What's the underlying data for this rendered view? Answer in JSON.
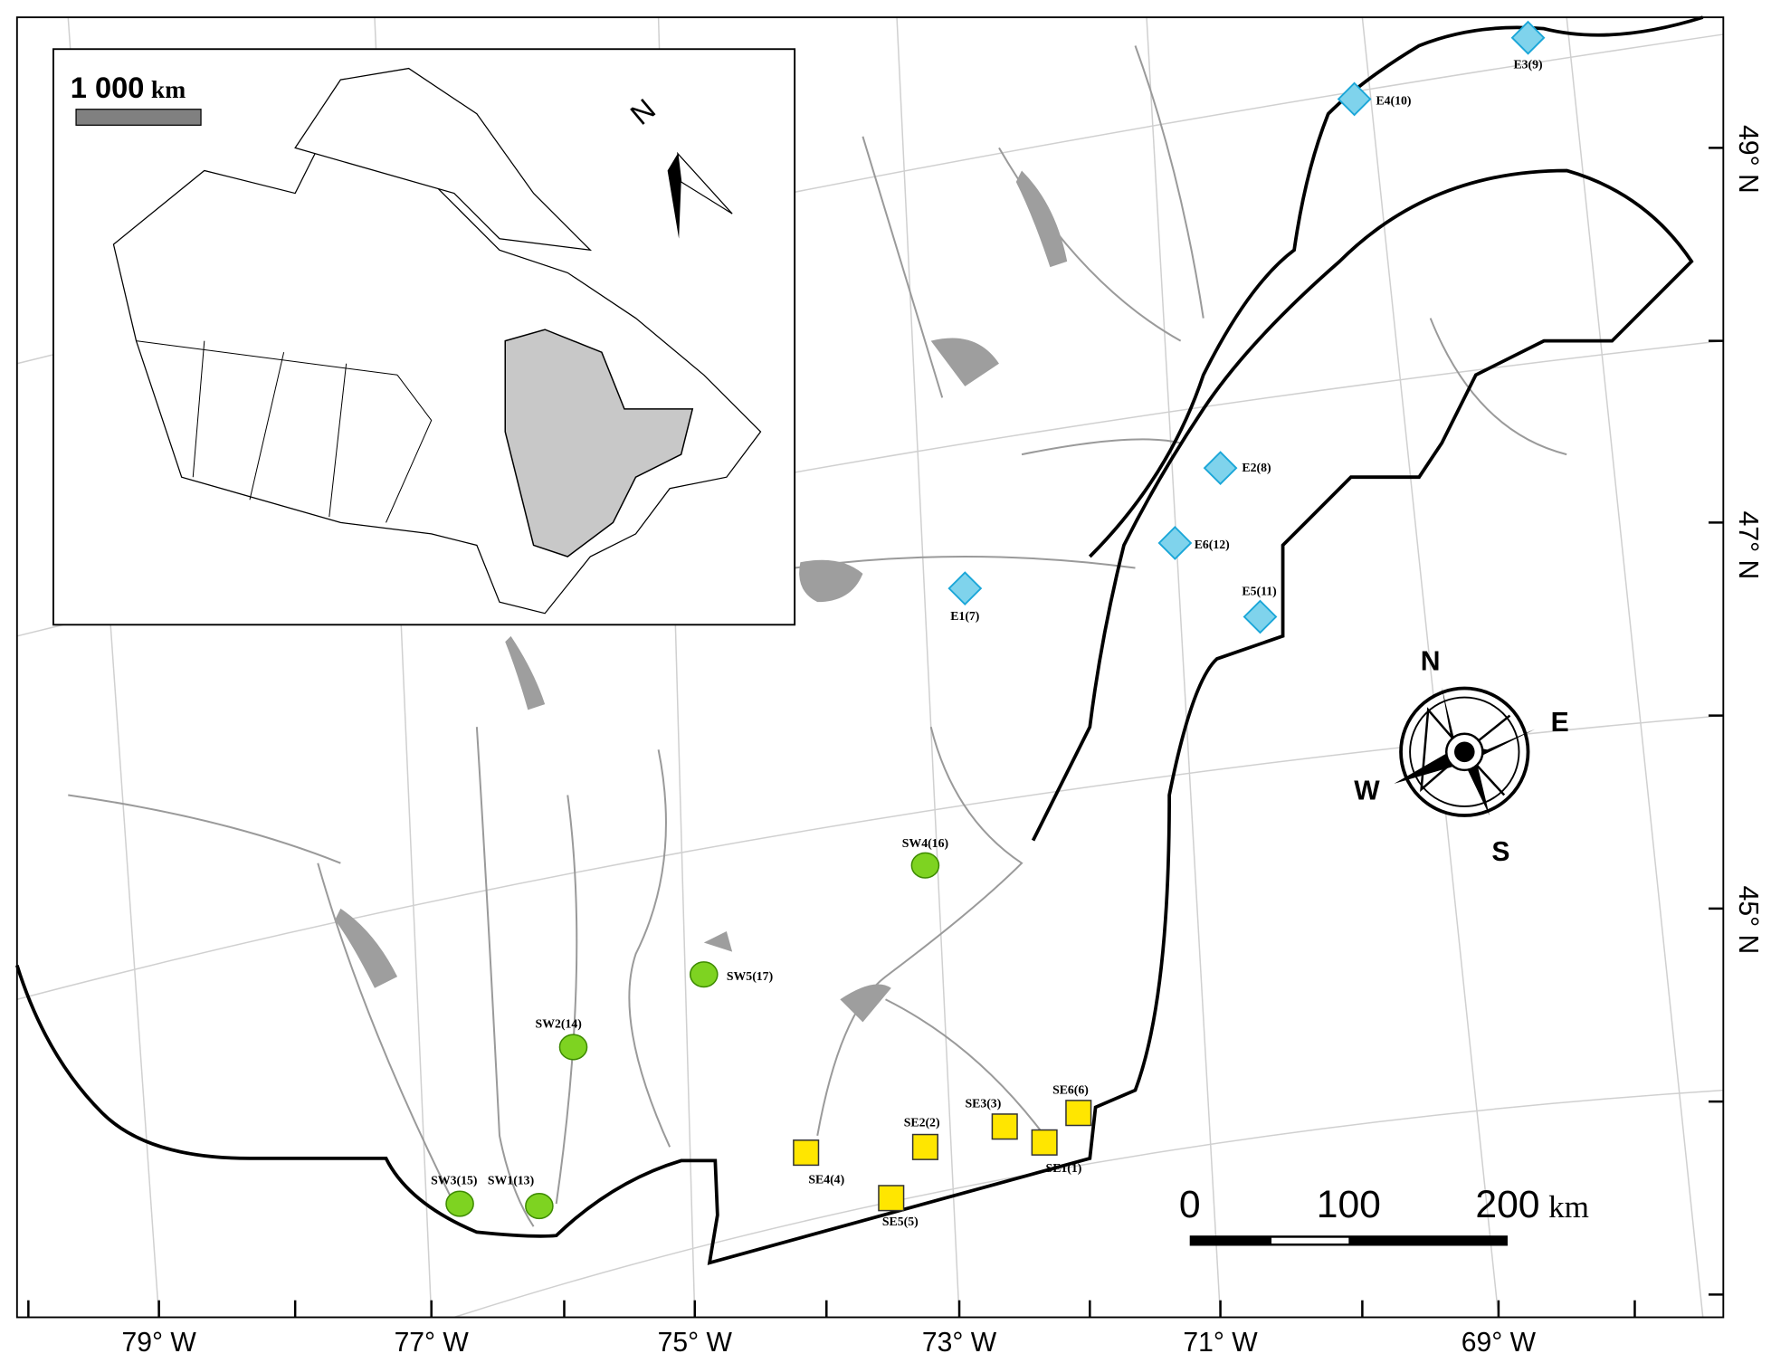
{
  "map": {
    "longitude_labels": [
      "79° W",
      "77° W",
      "75° W",
      "73° W",
      "71° W",
      "69° W"
    ],
    "latitude_labels": [
      "49° N",
      "47° N",
      "45° N"
    ],
    "east_sites": [
      "E3(9)",
      "E4(10)",
      "E2(8)",
      "E6(12)",
      "E5(11)",
      "E1(7)"
    ],
    "southwest_sites": [
      "SW4(16)",
      "SW5(17)",
      "SW2(14)",
      "SW3(15)",
      "SW1(13)"
    ],
    "southeast_sites": [
      "SE4(4)",
      "SE2(2)",
      "SE3(3)",
      "SE6(6)",
      "SE1(1)",
      "SE5(5)"
    ],
    "scale_bar": {
      "labels": [
        "0",
        "100",
        "200"
      ],
      "unit": "km"
    },
    "compass": {
      "north": "N",
      "east": "E",
      "south": "S",
      "west": "W"
    },
    "inset": {
      "scale_label": "1 000",
      "scale_unit": "km",
      "north": "N"
    }
  }
}
